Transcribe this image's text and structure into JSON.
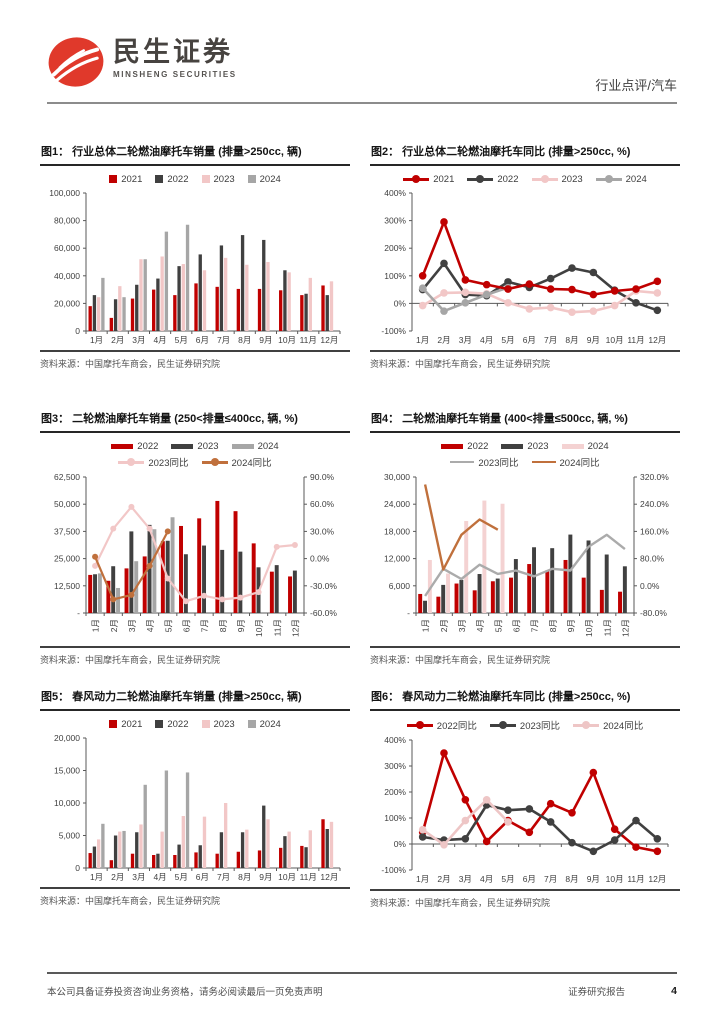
{
  "header": {
    "brand_cn": "民生证券",
    "brand_en": "MINSHENG SECURITIES",
    "doc_type": "行业点评/汽车",
    "brand_red": "#e0392b"
  },
  "footer": {
    "left": "本公司具备证券投资咨询业务资格，请务必阅读最后一页免责声明",
    "right": "证券研究报告",
    "page": "4"
  },
  "colors": {
    "red": "#c00000",
    "dark": "#404040",
    "pink": "#f2c7c7",
    "gray": "#a6a6a6",
    "brown": "#c0703c",
    "gray_line": "#ababab"
  },
  "chart_data": [
    {
      "title": "图1： 行业总体二轮燃油摩托车销量 (排量>250cc, 辆)",
      "source": "资料来源：中国摩托车商会，民生证券研究院",
      "type": "bar",
      "categories": [
        "1月",
        "2月",
        "3月",
        "4月",
        "5月",
        "6月",
        "7月",
        "8月",
        "9月",
        "10月",
        "11月",
        "12月"
      ],
      "left_axis": {
        "min": 0,
        "max": 100000,
        "step": 20000,
        "fmt": "num"
      },
      "series": [
        {
          "name": "2021",
          "kind": "bar",
          "color": "#c00000",
          "values": [
            18000,
            9500,
            23500,
            30000,
            26000,
            34500,
            32000,
            30500,
            30500,
            29500,
            26000,
            33000
          ]
        },
        {
          "name": "2022",
          "kind": "bar",
          "color": "#404040",
          "values": [
            26000,
            23000,
            33500,
            38000,
            47000,
            55500,
            62000,
            69500,
            66000,
            44000,
            27000,
            26000
          ]
        },
        {
          "name": "2023",
          "kind": "bar",
          "color": "#f2c7c7",
          "values": [
            24500,
            32500,
            52000,
            54000,
            48500,
            44000,
            53000,
            48000,
            50000,
            42500,
            38500,
            36000
          ]
        },
        {
          "name": "2024",
          "kind": "bar",
          "color": "#a6a6a6",
          "values": [
            38500,
            24500,
            52000,
            72000,
            77000,
            null,
            null,
            null,
            null,
            null,
            null,
            null
          ]
        }
      ]
    },
    {
      "title": "图2： 行业总体二轮燃油摩托车同比 (排量>250cc, %)",
      "source": "资料来源：中国摩托车商会，民生证券研究院",
      "type": "line",
      "categories": [
        "1月",
        "2月",
        "3月",
        "4月",
        "5月",
        "6月",
        "7月",
        "8月",
        "9月",
        "10月",
        "11月",
        "12月"
      ],
      "left_axis": {
        "min": -100,
        "max": 400,
        "step": 100,
        "fmt": "pct"
      },
      "series": [
        {
          "name": "2021",
          "kind": "line",
          "marker": true,
          "color": "#c00000",
          "values": [
            100,
            295,
            85,
            68,
            52,
            70,
            52,
            50,
            32,
            45,
            52,
            80
          ]
        },
        {
          "name": "2022",
          "kind": "line",
          "marker": true,
          "color": "#404040",
          "values": [
            50,
            145,
            32,
            28,
            78,
            58,
            90,
            128,
            112,
            48,
            2,
            -25
          ]
        },
        {
          "name": "2023",
          "kind": "line",
          "marker": true,
          "color": "#f2c7c7",
          "values": [
            -8,
            38,
            40,
            35,
            2,
            -20,
            -15,
            -32,
            -28,
            -8,
            45,
            38
          ]
        },
        {
          "name": "2024",
          "kind": "line",
          "marker": true,
          "color": "#a6a6a6",
          "values": [
            55,
            -28,
            2,
            32,
            57,
            null,
            null,
            null,
            null,
            null,
            null,
            null
          ]
        }
      ]
    },
    {
      "title": "图3： 二轮燃油摩托车销量 (250<排量≤400cc, 辆, %)",
      "source": "资料来源：中国摩托车商会，民生证券研究院",
      "type": "bar+line",
      "categories": [
        "1月",
        "2月",
        "3月",
        "4月",
        "5月",
        "6月",
        "7月",
        "8月",
        "9月",
        "10月",
        "11月",
        "12月"
      ],
      "left_axis": {
        "min": 0,
        "max": 62500,
        "step": 12500,
        "fmt": "numdash"
      },
      "right_axis": {
        "min": -60,
        "max": 90,
        "step": 30,
        "fmt": "pct1"
      },
      "series": [
        {
          "name": "2022",
          "kind": "bar",
          "color": "#c00000",
          "values": [
            17500,
            14800,
            20500,
            26000,
            33000,
            40000,
            43500,
            51500,
            46800,
            32000,
            19000,
            16800
          ]
        },
        {
          "name": "2023",
          "kind": "bar",
          "color": "#404040",
          "values": [
            17800,
            21500,
            37500,
            40500,
            33200,
            27000,
            31000,
            29000,
            28200,
            21000,
            22000,
            19500
          ]
        },
        {
          "name": "2024",
          "kind": "bar",
          "color": "#a6a6a6",
          "values": [
            18200,
            11500,
            23800,
            38500,
            44000,
            null,
            null,
            null,
            null,
            null,
            null,
            null
          ]
        },
        {
          "name": "2023同比",
          "kind": "line",
          "axis": "right",
          "marker": true,
          "color": "#f2c7c7",
          "values": [
            -8,
            33,
            57,
            33,
            -22,
            -47,
            -41,
            -45,
            -43,
            -37,
            13,
            15
          ]
        },
        {
          "name": "2024同比",
          "kind": "line",
          "axis": "right",
          "marker": true,
          "color": "#c0703c",
          "values": [
            2,
            -45,
            -40,
            -8,
            30,
            null,
            null,
            null,
            null,
            null,
            null,
            null
          ]
        }
      ]
    },
    {
      "title": "图4： 二轮燃油摩托车销量 (400<排量≤500cc, 辆, %)",
      "source": "资料来源：中国摩托车商会，民生证券研究院",
      "type": "bar+line",
      "categories": [
        "1月",
        "2月",
        "3月",
        "4月",
        "5月",
        "6月",
        "7月",
        "8月",
        "9月",
        "10月",
        "11月",
        "12月"
      ],
      "left_axis": {
        "min": 0,
        "max": 30000,
        "step": 6000,
        "fmt": "numdash"
      },
      "right_axis": {
        "min": -80,
        "max": 320,
        "step": 80,
        "fmt": "pct1"
      },
      "series": [
        {
          "name": "2022",
          "kind": "bar",
          "color": "#c00000",
          "values": [
            4200,
            3600,
            6500,
            5000,
            7000,
            7800,
            10800,
            9400,
            11700,
            7800,
            5100,
            4700
          ]
        },
        {
          "name": "2023",
          "kind": "bar",
          "color": "#404040",
          "values": [
            2700,
            6200,
            7300,
            8600,
            7600,
            11900,
            14500,
            14300,
            17300,
            16000,
            12900,
            10300
          ]
        },
        {
          "name": "2024",
          "kind": "bar",
          "color": "#f4d2d2",
          "values": [
            11700,
            8700,
            20300,
            24800,
            24100,
            null,
            null,
            null,
            null,
            null,
            null,
            null
          ]
        },
        {
          "name": "2023同比",
          "kind": "line",
          "axis": "right",
          "marker": false,
          "color": "#ababab",
          "values": [
            -30,
            50,
            20,
            62,
            35,
            45,
            28,
            50,
            45,
            115,
            150,
            108
          ]
        },
        {
          "name": "2024同比",
          "kind": "line",
          "axis": "right",
          "marker": false,
          "color": "#c0703c",
          "values": [
            298,
            48,
            150,
            195,
            165,
            null,
            null,
            null,
            null,
            null,
            null,
            null
          ]
        }
      ]
    },
    {
      "title": "图5： 春风动力二轮燃油摩托车销量 (排量>250cc, 辆)",
      "source": "资料来源：中国摩托车商会，民生证券研究院",
      "type": "bar",
      "categories": [
        "1月",
        "2月",
        "3月",
        "4月",
        "5月",
        "6月",
        "7月",
        "8月",
        "9月",
        "10月",
        "11月",
        "12月"
      ],
      "left_axis": {
        "min": 0,
        "max": 20000,
        "step": 5000,
        "fmt": "num"
      },
      "series": [
        {
          "name": "2021",
          "kind": "bar",
          "color": "#c00000",
          "values": [
            2300,
            1200,
            2200,
            2000,
            2000,
            2400,
            2200,
            2500,
            2700,
            3100,
            3400,
            7500
          ]
        },
        {
          "name": "2022",
          "kind": "bar",
          "color": "#404040",
          "values": [
            3300,
            5000,
            5500,
            2200,
            3600,
            3500,
            5500,
            5500,
            9600,
            4900,
            3200,
            6000
          ]
        },
        {
          "name": "2023",
          "kind": "bar",
          "color": "#f2c7c7",
          "values": [
            4400,
            5600,
            6700,
            5600,
            8000,
            7900,
            10000,
            5900,
            7500,
            5600,
            5800,
            7100
          ]
        },
        {
          "name": "2024",
          "kind": "bar",
          "color": "#a6a6a6",
          "values": [
            6800,
            5700,
            12800,
            15000,
            14700,
            null,
            null,
            null,
            null,
            null,
            null,
            null
          ]
        }
      ]
    },
    {
      "title": "图6： 春风动力二轮燃油摩托车同比 (排量>250cc, %)",
      "source": "资料来源：中国摩托车商会，民生证券研究院",
      "type": "line",
      "categories": [
        "1月",
        "2月",
        "3月",
        "4月",
        "5月",
        "6月",
        "7月",
        "8月",
        "9月",
        "10月",
        "11月",
        "12月"
      ],
      "left_axis": {
        "min": -100,
        "max": 400,
        "step": 100,
        "fmt": "pct"
      },
      "series": [
        {
          "name": "2022同比",
          "kind": "line",
          "marker": true,
          "color": "#c00000",
          "values": [
            45,
            350,
            170,
            10,
            90,
            45,
            155,
            120,
            275,
            57,
            -12,
            -28
          ]
        },
        {
          "name": "2023同比",
          "kind": "line",
          "marker": true,
          "color": "#404040",
          "values": [
            27,
            15,
            20,
            150,
            130,
            135,
            85,
            5,
            -28,
            15,
            90,
            20
          ]
        },
        {
          "name": "2024同比",
          "kind": "line",
          "marker": true,
          "color": "#eec6c6",
          "values": [
            55,
            -3,
            90,
            170,
            85,
            null,
            null,
            null,
            null,
            null,
            null,
            null
          ]
        }
      ]
    }
  ]
}
